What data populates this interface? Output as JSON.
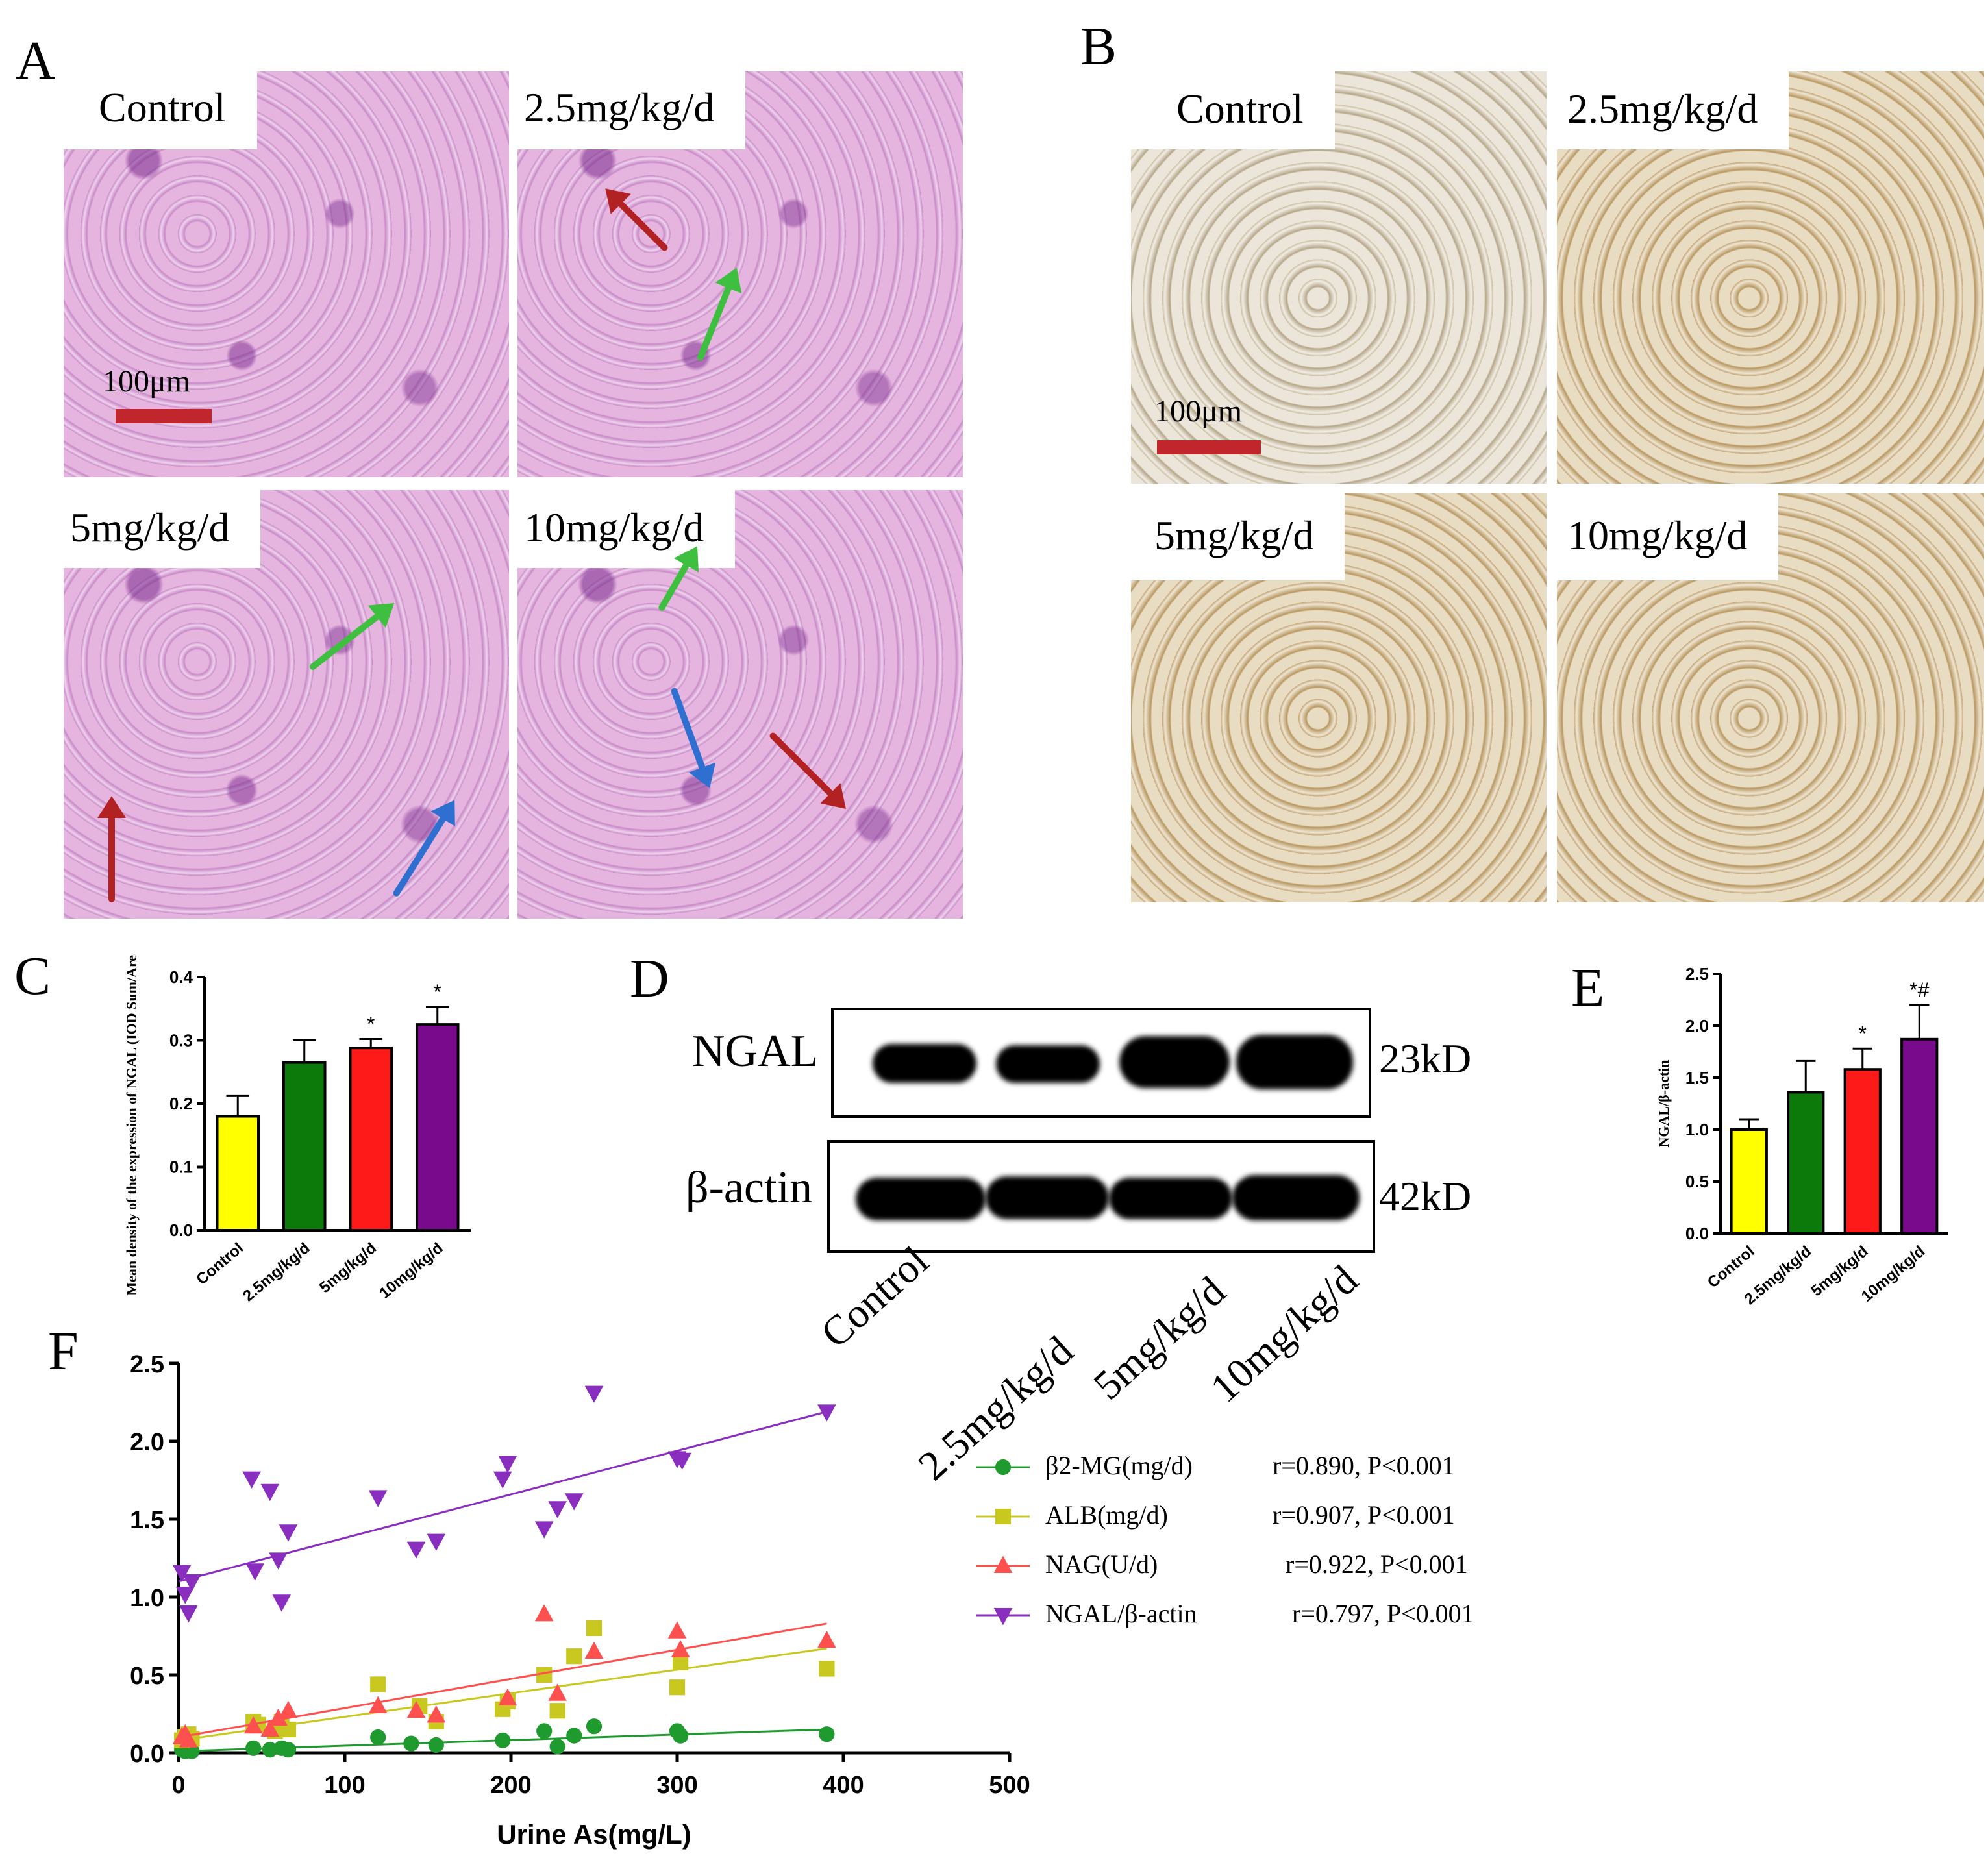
{
  "panels": {
    "A": {
      "letter": "A",
      "labels": [
        "Control",
        "2.5mg/kg/d",
        "5mg/kg/d",
        "10mg/kg/d"
      ],
      "scale": "100μm"
    },
    "B": {
      "letter": "B",
      "labels": [
        "Control",
        "2.5mg/kg/d",
        "5mg/kg/d",
        "10mg/kg/d"
      ],
      "scale": "100μm"
    },
    "C": {
      "letter": "C"
    },
    "D": {
      "letter": "D",
      "rows": [
        {
          "label": "NGAL",
          "size": "23kD"
        },
        {
          "label": "β-actin",
          "size": "42kD"
        }
      ],
      "lanes": [
        "Control",
        "2.5mg/kg/d",
        "5mg/kg/d",
        "10mg/kg/d"
      ]
    },
    "E": {
      "letter": "E"
    },
    "F": {
      "letter": "F"
    }
  },
  "colors": {
    "control": "#ffff00",
    "g25": "#0b7a0b",
    "g5": "#ff1a1a",
    "g10": "#7a0a8c",
    "b2mg": "#1f9a2f",
    "alb": "#c8c820",
    "nag": "#ff5050",
    "ngal": "#8a2ec0"
  },
  "chart_data": [
    {
      "id": "C",
      "type": "bar",
      "categories": [
        "Control",
        "2.5mg/kg/d",
        "5mg/kg/d",
        "10mg/kg/d"
      ],
      "values": [
        0.18,
        0.265,
        0.288,
        0.325
      ],
      "errors": [
        0.033,
        0.035,
        0.014,
        0.028
      ],
      "annotations": [
        "",
        "",
        "*",
        "*"
      ],
      "ylabel": "Mean density of the expression of NGAL (IOD Sum/Area Sum)",
      "ylim": [
        0,
        0.4
      ],
      "yticks": [
        "0.0",
        "0.1",
        "0.2",
        "0.3",
        "0.4"
      ]
    },
    {
      "id": "E",
      "type": "bar",
      "categories": [
        "Control",
        "2.5mg/kg/d",
        "5mg/kg/d",
        "10mg/kg/d"
      ],
      "values": [
        1.0,
        1.36,
        1.58,
        1.87
      ],
      "errors": [
        0.1,
        0.3,
        0.2,
        0.33
      ],
      "annotations": [
        "",
        "",
        "*",
        "*#"
      ],
      "ylabel": "NGAL/β-actin",
      "ylim": [
        0,
        2.5
      ],
      "yticks": [
        "0.0",
        "0.5",
        "1.0",
        "1.5",
        "2.0",
        "2.5"
      ]
    },
    {
      "id": "F",
      "type": "scatter",
      "xlabel": "Urine As(mg/L)",
      "xlim": [
        0,
        500
      ],
      "ylim": [
        0,
        2.5
      ],
      "xticks": [
        "0",
        "100",
        "200",
        "300",
        "400",
        "500"
      ],
      "yticks": [
        "0.0",
        "0.5",
        "1.0",
        "1.5",
        "2.0",
        "2.5"
      ],
      "series": [
        {
          "name": "β2-MG(mg/d)",
          "stat": "r=0.890, P<0.001",
          "marker": "circle",
          "line": [
            [
              0,
              0.01
            ],
            [
              390,
              0.15
            ]
          ],
          "points": [
            [
              2,
              0.02
            ],
            [
              4,
              0.01
            ],
            [
              6,
              0.03
            ],
            [
              8,
              0.01
            ],
            [
              45,
              0.03
            ],
            [
              55,
              0.02
            ],
            [
              62,
              0.03
            ],
            [
              66,
              0.02
            ],
            [
              120,
              0.1
            ],
            [
              140,
              0.06
            ],
            [
              155,
              0.05
            ],
            [
              195,
              0.08
            ],
            [
              220,
              0.14
            ],
            [
              228,
              0.04
            ],
            [
              238,
              0.11
            ],
            [
              250,
              0.17
            ],
            [
              300,
              0.14
            ],
            [
              302,
              0.11
            ],
            [
              390,
              0.12
            ]
          ]
        },
        {
          "name": "ALB(mg/d)",
          "stat": "r=0.907, P<0.001",
          "marker": "square",
          "line": [
            [
              0,
              0.08
            ],
            [
              390,
              0.67
            ]
          ],
          "points": [
            [
              2,
              0.08
            ],
            [
              4,
              0.1
            ],
            [
              6,
              0.12
            ],
            [
              8,
              0.09
            ],
            [
              45,
              0.2
            ],
            [
              48,
              0.18
            ],
            [
              58,
              0.14
            ],
            [
              62,
              0.2
            ],
            [
              66,
              0.15
            ],
            [
              120,
              0.44
            ],
            [
              145,
              0.3
            ],
            [
              155,
              0.2
            ],
            [
              195,
              0.28
            ],
            [
              198,
              0.33
            ],
            [
              220,
              0.5
            ],
            [
              228,
              0.27
            ],
            [
              238,
              0.62
            ],
            [
              250,
              0.8
            ],
            [
              300,
              0.42
            ],
            [
              302,
              0.58
            ],
            [
              390,
              0.54
            ]
          ]
        },
        {
          "name": "NAG(U/d)",
          "stat": "r=0.922, P<0.001",
          "marker": "triangle-up",
          "line": [
            [
              0,
              0.1
            ],
            [
              390,
              0.83
            ]
          ],
          "points": [
            [
              2,
              0.1
            ],
            [
              4,
              0.12
            ],
            [
              6,
              0.08
            ],
            [
              45,
              0.17
            ],
            [
              55,
              0.15
            ],
            [
              60,
              0.22
            ],
            [
              66,
              0.27
            ],
            [
              120,
              0.3
            ],
            [
              143,
              0.27
            ],
            [
              155,
              0.24
            ],
            [
              198,
              0.35
            ],
            [
              220,
              0.89
            ],
            [
              228,
              0.38
            ],
            [
              250,
              0.65
            ],
            [
              300,
              0.78
            ],
            [
              302,
              0.66
            ],
            [
              390,
              0.72
            ]
          ]
        },
        {
          "name": "NGAL/β-actin",
          "stat": "r=0.797, P<0.001",
          "marker": "triangle-down",
          "line": [
            [
              0,
              1.1
            ],
            [
              390,
              2.19
            ]
          ],
          "points": [
            [
              2,
              1.16
            ],
            [
              4,
              1.02
            ],
            [
              6,
              0.9
            ],
            [
              8,
              1.1
            ],
            [
              44,
              1.76
            ],
            [
              46,
              1.17
            ],
            [
              55,
              1.68
            ],
            [
              60,
              1.24
            ],
            [
              62,
              0.97
            ],
            [
              66,
              1.42
            ],
            [
              120,
              1.64
            ],
            [
              143,
              1.31
            ],
            [
              155,
              1.36
            ],
            [
              195,
              1.76
            ],
            [
              198,
              1.86
            ],
            [
              220,
              1.44
            ],
            [
              228,
              1.57
            ],
            [
              238,
              1.62
            ],
            [
              250,
              2.31
            ],
            [
              300,
              1.89
            ],
            [
              303,
              1.88
            ],
            [
              390,
              2.19
            ]
          ]
        }
      ]
    }
  ]
}
